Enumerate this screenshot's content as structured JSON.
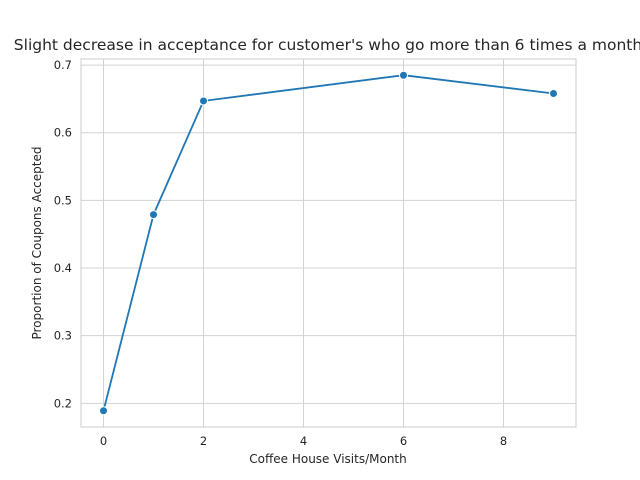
{
  "chart_data": {
    "type": "line",
    "title": "Slight decrease in acceptance for customer's who go more than 6 times a month",
    "xlabel": "Coffee House Visits/Month",
    "ylabel": "Proportion of Coupons Accepted",
    "x": [
      0,
      1,
      2,
      6,
      9
    ],
    "series": [
      {
        "values": [
          0.189,
          0.479,
          0.647,
          0.685,
          0.658
        ]
      }
    ],
    "xlim": [
      -0.45,
      9.45
    ],
    "ylim": [
      0.165,
      0.709
    ],
    "xticks": [
      0,
      2,
      4,
      6,
      8
    ],
    "yticks": [
      0.2,
      0.3,
      0.4,
      0.5,
      0.6,
      0.7
    ],
    "xtick_labels": [
      "0",
      "2",
      "4",
      "6",
      "8"
    ],
    "ytick_labels": [
      "0.2",
      "0.3",
      "0.4",
      "0.5",
      "0.6",
      "0.7"
    ],
    "grid": true,
    "legend": "none",
    "color": "#1f77b4"
  }
}
